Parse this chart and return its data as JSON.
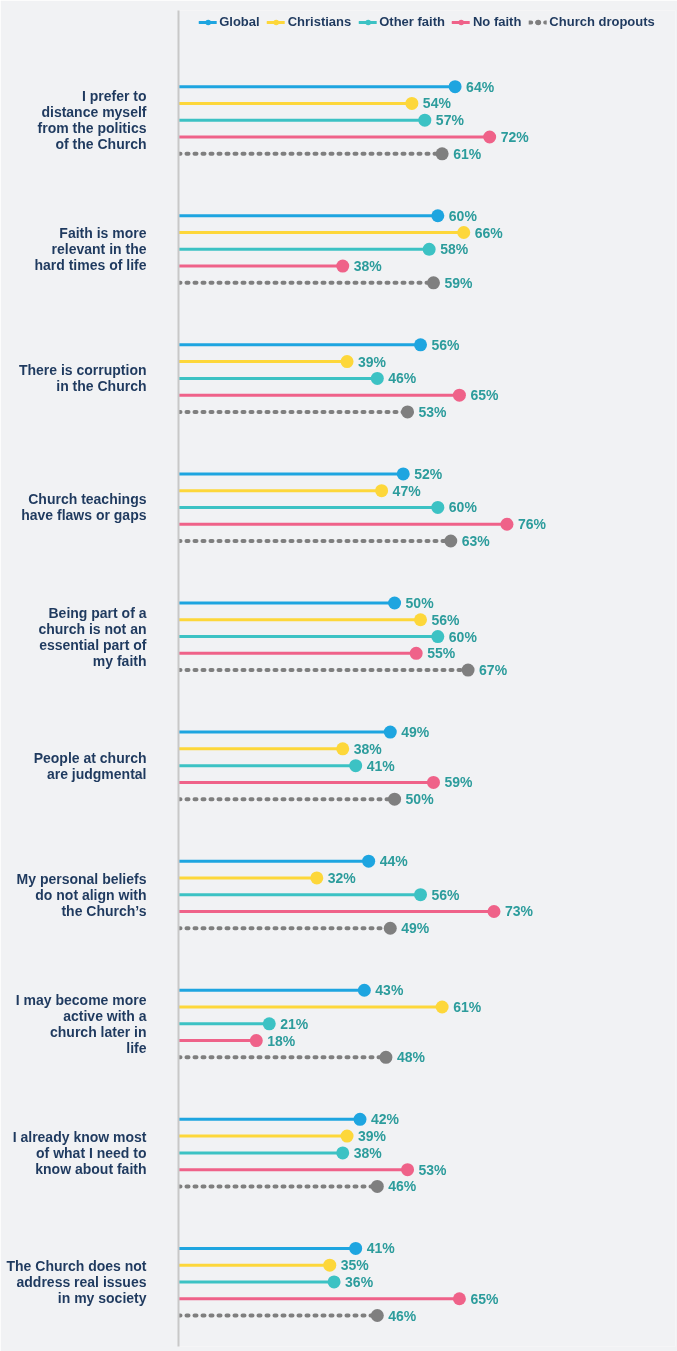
{
  "chart_data": {
    "type": "lollipop",
    "orientation": "horizontal",
    "marker": "circle",
    "legend": "top",
    "tick_labels": "y",
    "xlim": [
      0,
      115
    ],
    "categories": [
      "I prefer to distance myself from the politics of the Church",
      "Faith is more relevant in the hard times of life",
      "There is corruption in the Church",
      "Church teachings have flaws or gaps",
      "Being part of a church is not an essential part of my faith",
      "People at church are judgmental",
      "My personal beliefs do not align with the Church’s",
      "I may become more active with a church later in life",
      "I already know most of what I need to know about faith",
      "The Church does not address real issues in my society"
    ],
    "series": [
      {
        "name": "Global",
        "color": "#1ea5e0",
        "line_style": "solid",
        "values": [
          64,
          60,
          56,
          52,
          50,
          49,
          44,
          43,
          42,
          41
        ],
        "value_labels": [
          "64%",
          "60%",
          "56%",
          "52%",
          "50%",
          "49%",
          "44%",
          "43%",
          "42%",
          "41%"
        ]
      },
      {
        "name": "Christians",
        "color": "#fdd73a",
        "line_style": "solid",
        "values": [
          54,
          66,
          39,
          47,
          56,
          38,
          32,
          61,
          39,
          35
        ],
        "value_labels": [
          "54%",
          "66%",
          "39%",
          "47%",
          "56%",
          "38%",
          "32%",
          "61%",
          "39%",
          "35%"
        ]
      },
      {
        "name": "Other faith",
        "color": "#3cc2c4",
        "line_style": "solid",
        "values": [
          57,
          58,
          46,
          60,
          60,
          41,
          56,
          21,
          38,
          36
        ],
        "value_labels": [
          "57%",
          "58%",
          "46%",
          "60%",
          "60%",
          "41%",
          "56%",
          "21%",
          "38%",
          "36%"
        ]
      },
      {
        "name": "No faith",
        "color": "#ef6289",
        "line_style": "solid",
        "values": [
          72,
          38,
          65,
          76,
          55,
          59,
          73,
          18,
          53,
          65
        ],
        "value_labels": [
          "72%",
          "38%",
          "65%",
          "76%",
          "55%",
          "59%",
          "73%",
          "18%",
          "53%",
          "65%"
        ]
      },
      {
        "name": "Church dropouts",
        "color": "#7f7f7f",
        "line_style": "dotted",
        "values": [
          61,
          59,
          53,
          63,
          67,
          50,
          49,
          48,
          46,
          46
        ],
        "value_labels": [
          "61%",
          "59%",
          "53%",
          "63%",
          "67%",
          "50%",
          "49%",
          "48%",
          "46%",
          "46%"
        ]
      }
    ]
  }
}
